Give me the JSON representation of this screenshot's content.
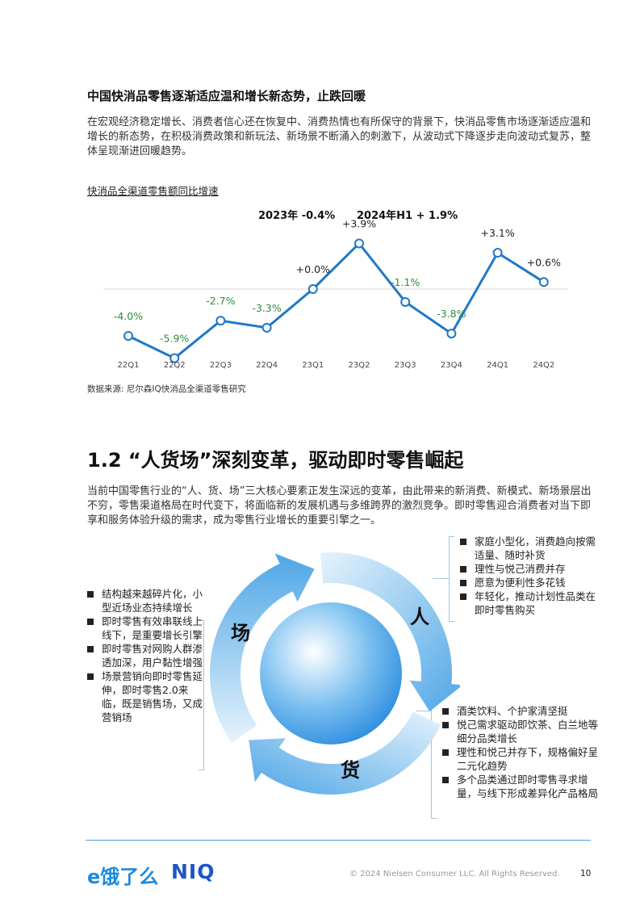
{
  "section": {
    "title": "中国快消品零售逐渐适应温和增长新态势，止跌回暖",
    "intro": "在宏观经济稳定增长、消费者信心还在恢复中、消费热情也有所保守的背景下，快消品零售市场逐渐适应温和增长的新态势，在积极消费政策和新玩法、新场景不断涌入的刺激下，从波动式下降逐步走向波动式复苏，整体呈现渐进回暖趋势。"
  },
  "chart_data": {
    "type": "line",
    "title": "快消品全渠道零售额同比增速",
    "subtitle_left": "2023年 -0.4%",
    "subtitle_right": "2024年H1 + 1.9%",
    "categories": [
      "22Q1",
      "22Q2",
      "22Q3",
      "22Q4",
      "23Q1",
      "23Q2",
      "23Q3",
      "23Q4",
      "24Q1",
      "24Q2"
    ],
    "values": [
      -4.0,
      -5.9,
      -2.7,
      -3.3,
      0.0,
      3.9,
      -1.1,
      -3.8,
      3.1,
      0.6
    ],
    "data_labels": [
      "-4.0%",
      "-5.9%",
      "-2.7%",
      "-3.3%",
      "+0.0%",
      "+3.9%",
      "-1.1%",
      "-3.8%",
      "+3.1%",
      "+0.6%"
    ],
    "label_colors": [
      "#2e8b3e",
      "#2e8b3e",
      "#2e8b3e",
      "#2e8b3e",
      "#222222",
      "#222222",
      "#2e8b3e",
      "#2e8b3e",
      "#222222",
      "#222222"
    ],
    "line_color": "#1f78c8",
    "ylim": [
      -7,
      5
    ]
  },
  "source": "数据来源: 尼尔森IQ快消品全渠道零售研究",
  "section2": {
    "heading": "1.2 “人货场”深刻变革，驱动即时零售崛起",
    "paragraph": "当前中国零售行业的“人、货、场”三大核心要素正发生深远的变革，由此带来的新消费、新模式、新场景层出不穷，零售渠道格局在时代变下，将面临新的发展机遇与多维跨界的激烈竞争。即时零售迎合消费者对当下即享和服务体验升级的需求，成为零售行业增长的重要引擎之一。"
  },
  "diagram": {
    "people": {
      "label": "人",
      "items": [
        "家庭小型化，消费趋向按需适量、随时补货",
        "理性与悦己消费并存",
        "愿意为便利性多花钱",
        "年轻化，推动计划性品类在即时零售购买"
      ]
    },
    "goods": {
      "label": "货",
      "items": [
        "酒类饮料、个护家清坚挺",
        "悦己需求驱动即饮茶、白兰地等细分品类增长",
        "理性和悦己并存下，规格偏好呈二元化趋势",
        "多个品类通过即时零售寻求增量，与线下形成差异化产品格局"
      ]
    },
    "place": {
      "label": "场",
      "items": [
        "结构越来越碎片化，小型近场业态持续增长",
        "即时零售有效串联线上线下，是重要增长引擎",
        "即时零售对网购人群渗透加深，用户黏性增强",
        "场景营销向即时零售延伸，即时零售2.0来临，既是销售场，又成营销场"
      ]
    },
    "arrow_color": "#5aaee8",
    "circle_color": "#2f8ee0"
  },
  "footer": {
    "logo_ele": "e饿了么",
    "logo_niq": "NIQ",
    "copyright": "© 2024 Nielsen Consumer LLC. All Rights Reserved.",
    "page": "10"
  }
}
